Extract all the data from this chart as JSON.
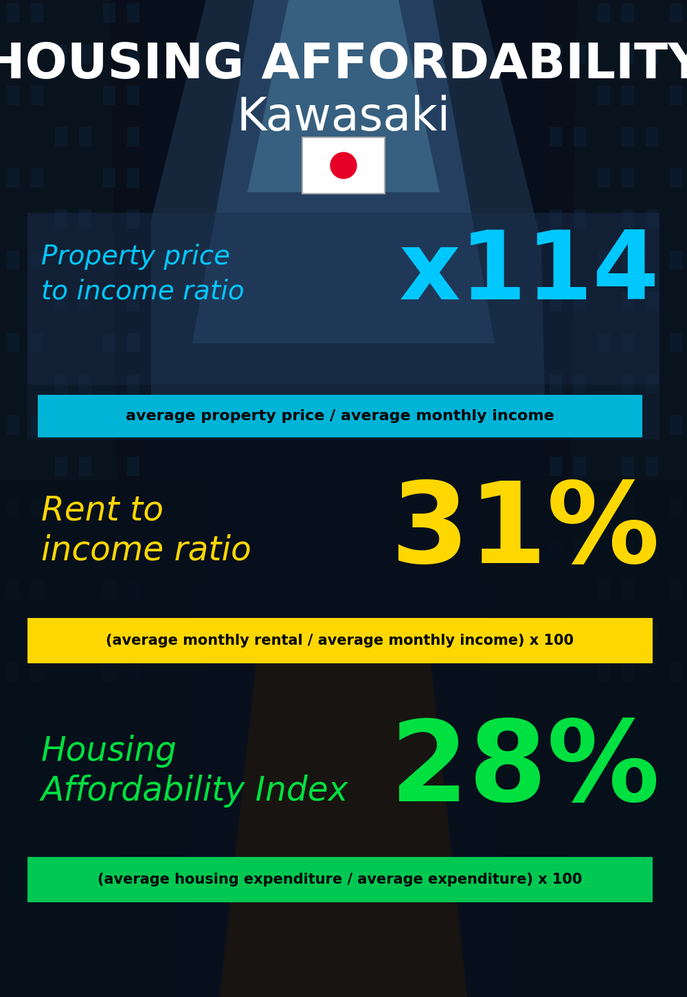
{
  "title_line1": "HOUSING AFFORDABILITY",
  "title_line2": "Kawasaki",
  "bg_color": "#060e1a",
  "section1_label_line1": "Property price",
  "section1_label_line2": "to income ratio",
  "section1_value": "x114",
  "section1_label_color": "#00c8ff",
  "section1_value_color": "#00c8ff",
  "section1_banner_text": "average property price / average monthly income",
  "section1_banner_bg": "#00b4d8",
  "section2_label_line1": "Rent to",
  "section2_label_line2": "income ratio",
  "section2_value": "31%",
  "section2_label_color": "#ffd700",
  "section2_value_color": "#ffd700",
  "section2_banner_text": "(average monthly rental / average monthly income) x 100",
  "section2_banner_bg": "#ffd700",
  "section3_label_line1": "Housing",
  "section3_label_line2": "Affordability Index",
  "section3_value": "28%",
  "section3_label_color": "#00e040",
  "section3_value_color": "#00e040",
  "section3_banner_text": "(average housing expenditure / average expenditure) x 100",
  "section3_banner_bg": "#00c853",
  "flag_bg": "#ffffff",
  "flag_circle_color": "#e60026",
  "figw": 10.0,
  "figh": 14.52,
  "dpi": 100
}
